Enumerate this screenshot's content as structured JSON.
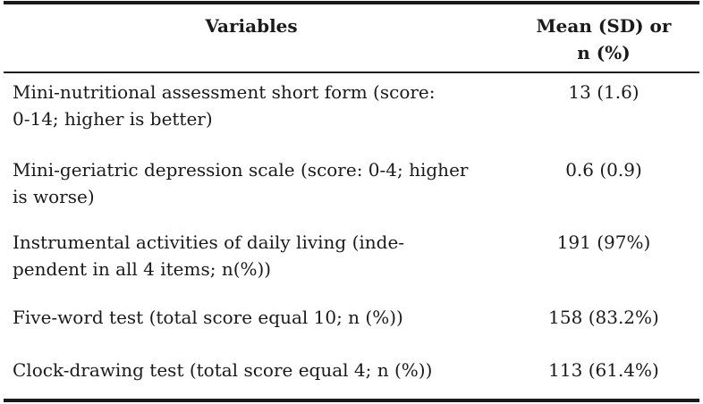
{
  "header": {
    "variables": "Variables",
    "value_line1": "Mean (SD) or",
    "value_line2": "n (%)"
  },
  "rows": [
    {
      "variable_line1": "Mini-nutritional assessment short form (score:",
      "variable_line2": "0-14; higher is better)",
      "value": "13 (1.6)"
    },
    {
      "variable_line1": "Mini-geriatric depression scale (score: 0-4; higher",
      "variable_line2": "is worse)",
      "value": "0.6 (0.9)"
    },
    {
      "variable_line1": "Instrumental activities of daily living (inde-",
      "variable_line2": "pendent in all 4 items; n(%))",
      "value": "191 (97%)"
    },
    {
      "variable_line1": "Five-word test (total score equal 10; n (%))",
      "variable_line2": "",
      "value": "158 (83.2%)"
    },
    {
      "variable_line1": "Clock-drawing test (total score equal 4; n (%))",
      "variable_line2": "",
      "value": "113 (61.4%)"
    }
  ]
}
